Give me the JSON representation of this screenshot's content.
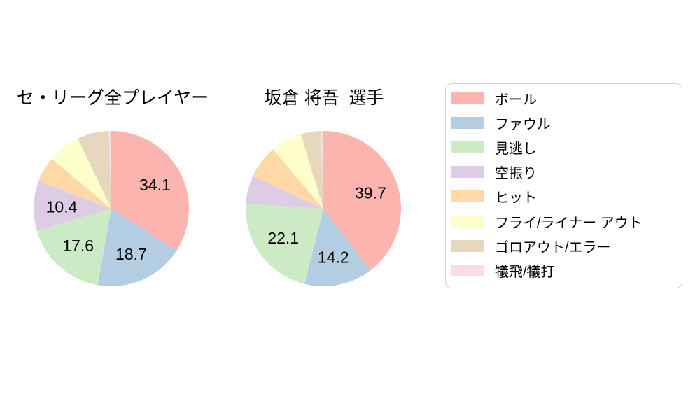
{
  "figure": {
    "background": "#ffffff",
    "text_color": "#000000",
    "legend_border_color": "#d3d3d3"
  },
  "legend": {
    "position": "right",
    "items": [
      {
        "label": "ボール",
        "color": "#fbb4ae"
      },
      {
        "label": "ファウル",
        "color": "#b3cde3"
      },
      {
        "label": "見逃し",
        "color": "#ccebc5"
      },
      {
        "label": "空振り",
        "color": "#decbe4"
      },
      {
        "label": "ヒット",
        "color": "#fed9a6"
      },
      {
        "label": "フライ/ライナー アウト",
        "color": "#ffffcc"
      },
      {
        "label": "ゴロアウト/エラー",
        "color": "#e5d8bd"
      },
      {
        "label": "犠飛/犠打",
        "color": "#fddaec"
      }
    ]
  },
  "chart_data": [
    {
      "type": "pie",
      "title": "セ・リーグ全プレイヤー",
      "start": "top",
      "direction": "clockwise",
      "categories": [
        "ボール",
        "ファウル",
        "見逃し",
        "空振り",
        "ヒット",
        "フライ/ライナー アウト",
        "ゴロアウト/エラー",
        "犠飛/犠打"
      ],
      "values": [
        34.1,
        18.7,
        17.6,
        10.4,
        5.3,
        6.8,
        6.6,
        0.5
      ],
      "labels_shown": [
        "34.1",
        "18.7",
        "17.6",
        "10.4",
        "",
        "",
        "",
        ""
      ],
      "colors": [
        "#fbb4ae",
        "#b3cde3",
        "#ccebc5",
        "#decbe4",
        "#fed9a6",
        "#ffffcc",
        "#e5d8bd",
        "#fddaec"
      ]
    },
    {
      "type": "pie",
      "title": "坂倉 将吾  選手",
      "start": "top",
      "direction": "clockwise",
      "categories": [
        "ボール",
        "ファウル",
        "見逃し",
        "空振り",
        "ヒット",
        "フライ/ライナー アウト",
        "ゴロアウト/エラー",
        "犠飛/犠打"
      ],
      "values": [
        39.7,
        14.2,
        22.1,
        5.9,
        6.9,
        6.5,
        4.2,
        0.5
      ],
      "labels_shown": [
        "39.7",
        "14.2",
        "22.1",
        "",
        "",
        "",
        "",
        ""
      ],
      "colors": [
        "#fbb4ae",
        "#b3cde3",
        "#ccebc5",
        "#decbe4",
        "#fed9a6",
        "#ffffcc",
        "#e5d8bd",
        "#fddaec"
      ]
    }
  ]
}
